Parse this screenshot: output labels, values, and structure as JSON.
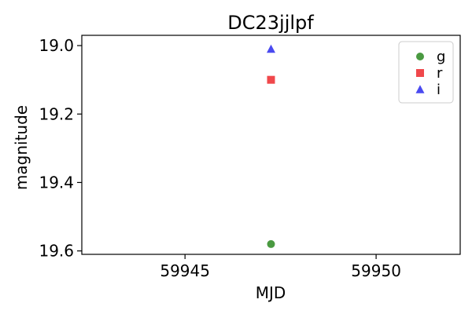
{
  "chart_data": {
    "type": "scatter",
    "title": "DC23jjlpf",
    "xlabel": "MJD",
    "ylabel": "magnitude",
    "xlim": [
      59942.3,
      59952.2
    ],
    "ylim": [
      19.61,
      18.97
    ],
    "y_inverted": true,
    "xticks": [
      59945,
      59950
    ],
    "xtick_labels": [
      "59945",
      "59950"
    ],
    "yticks": [
      19.0,
      19.2,
      19.4,
      19.6
    ],
    "ytick_labels": [
      "19.0",
      "19.2",
      "19.4",
      "19.6"
    ],
    "grid": false,
    "legend_position": "top-right",
    "series": [
      {
        "name": "g",
        "marker": "circle",
        "color": "#4a9a41",
        "points": [
          {
            "x": 59947.25,
            "y": 19.58
          }
        ]
      },
      {
        "name": "r",
        "marker": "square",
        "color": "#f0484b",
        "points": [
          {
            "x": 59947.25,
            "y": 19.1
          }
        ]
      },
      {
        "name": "i",
        "marker": "triangle",
        "color": "#4a4af0",
        "points": [
          {
            "x": 59947.25,
            "y": 19.01
          }
        ]
      }
    ]
  }
}
